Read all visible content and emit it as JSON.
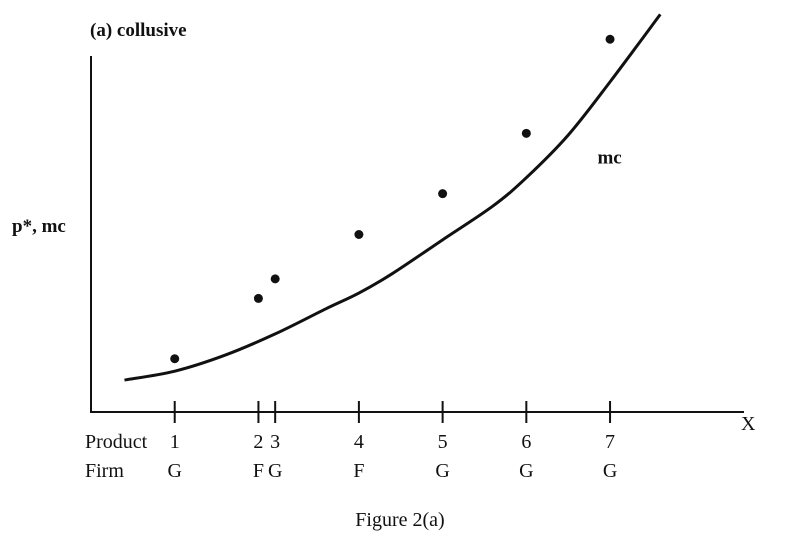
{
  "chart_data": {
    "type": "scatter",
    "title": "(a) collusive",
    "ylabel": "p*, mc",
    "xlabel": "X",
    "caption": "Figure 2(a)",
    "row_labels": {
      "product": "Product",
      "firm": "Firm"
    },
    "xlim": [
      0,
      7.8
    ],
    "ylim": [
      0,
      10
    ],
    "grid": false,
    "legend": "none",
    "products": [
      {
        "x": 1.0,
        "label": "1",
        "firm": "G"
      },
      {
        "x": 2.0,
        "label": "2",
        "firm": "F"
      },
      {
        "x": 2.2,
        "label": "3",
        "firm": "G"
      },
      {
        "x": 3.2,
        "label": "4",
        "firm": "F"
      },
      {
        "x": 4.2,
        "label": "5",
        "firm": "G"
      },
      {
        "x": 5.2,
        "label": "6",
        "firm": "G"
      },
      {
        "x": 6.2,
        "label": "7",
        "firm": "G"
      }
    ],
    "series": [
      {
        "name": "p*",
        "type": "scatter",
        "points": [
          {
            "x": 1.0,
            "y": 1.5
          },
          {
            "x": 2.0,
            "y": 3.2
          },
          {
            "x": 2.2,
            "y": 3.75
          },
          {
            "x": 3.2,
            "y": 5.0
          },
          {
            "x": 4.2,
            "y": 6.15
          },
          {
            "x": 5.2,
            "y": 7.85
          },
          {
            "x": 6.2,
            "y": 10.5
          }
        ]
      },
      {
        "name": "mc",
        "type": "line",
        "label": "mc",
        "points": [
          {
            "x": 0.4,
            "y": 0.9
          },
          {
            "x": 1.0,
            "y": 1.15
          },
          {
            "x": 1.6,
            "y": 1.6
          },
          {
            "x": 2.2,
            "y": 2.2
          },
          {
            "x": 2.8,
            "y": 2.9
          },
          {
            "x": 3.2,
            "y": 3.35
          },
          {
            "x": 3.6,
            "y": 3.9
          },
          {
            "x": 4.2,
            "y": 4.85
          },
          {
            "x": 4.8,
            "y": 5.8
          },
          {
            "x": 5.2,
            "y": 6.6
          },
          {
            "x": 5.7,
            "y": 7.8
          },
          {
            "x": 6.2,
            "y": 9.3
          },
          {
            "x": 6.8,
            "y": 11.2
          }
        ]
      }
    ]
  }
}
